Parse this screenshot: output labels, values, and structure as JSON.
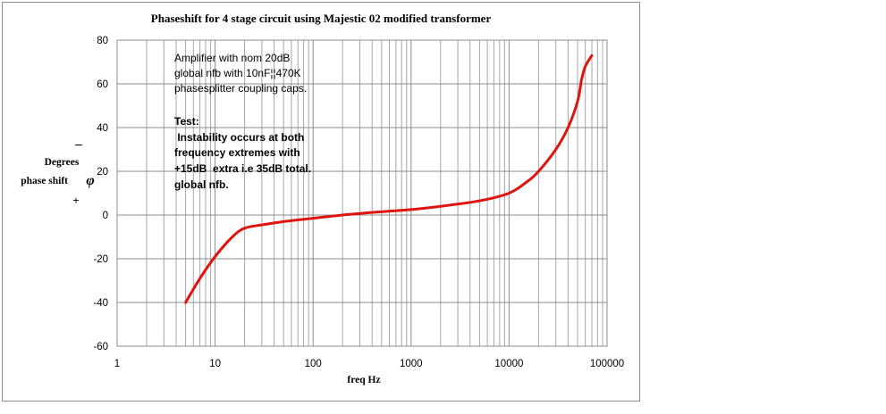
{
  "chart_data": {
    "type": "line",
    "title": "Phaseshift  for 4 stage circuit using Majestic 02 modified transformer",
    "xlabel": "freq Hz",
    "ylabel": {
      "minus": "_",
      "line1": "Degrees",
      "line2": "phase shift",
      "phi": "φ",
      "plus": "+"
    },
    "x_scale": "log",
    "xlim": [
      1,
      100000
    ],
    "ylim": [
      -60,
      80
    ],
    "x_ticks": [
      1,
      10,
      100,
      1000,
      10000,
      100000
    ],
    "x_tick_labels": [
      "1",
      "10",
      "100",
      "1000",
      "10000",
      "100000"
    ],
    "y_ticks": [
      -60,
      -40,
      -20,
      0,
      20,
      40,
      60,
      80
    ],
    "y_tick_labels": [
      "-60",
      "-40",
      "-20",
      "0",
      "20",
      "40",
      "60",
      "80"
    ],
    "grid": true,
    "legend": "none",
    "series": [
      {
        "color": "#e0140f",
        "x": [
          5,
          7,
          10,
          15,
          20,
          30,
          50,
          100,
          200,
          500,
          1000,
          2000,
          5000,
          10000,
          15000,
          20000,
          30000,
          40000,
          50000,
          55000,
          60000,
          70000
        ],
        "y": [
          -40,
          -29,
          -19,
          -10,
          -6,
          -4.5,
          -3,
          -1.5,
          0,
          1.5,
          2.5,
          4,
          6.5,
          10,
          15,
          20,
          30,
          40,
          52,
          62,
          68,
          73
        ]
      }
    ],
    "annotations": [
      {
        "bold": false,
        "lines": [
          "Amplifier with nom 20dB",
          "global nfb with 10nF¦¦470K",
          "phasesplitter coupling caps."
        ]
      },
      {
        "bold": true,
        "lines": [
          "Test:",
          " Instability occurs at both",
          "frequency extremes with",
          "+15dB  extra i.e 35dB total.",
          "global nfb."
        ]
      }
    ]
  }
}
